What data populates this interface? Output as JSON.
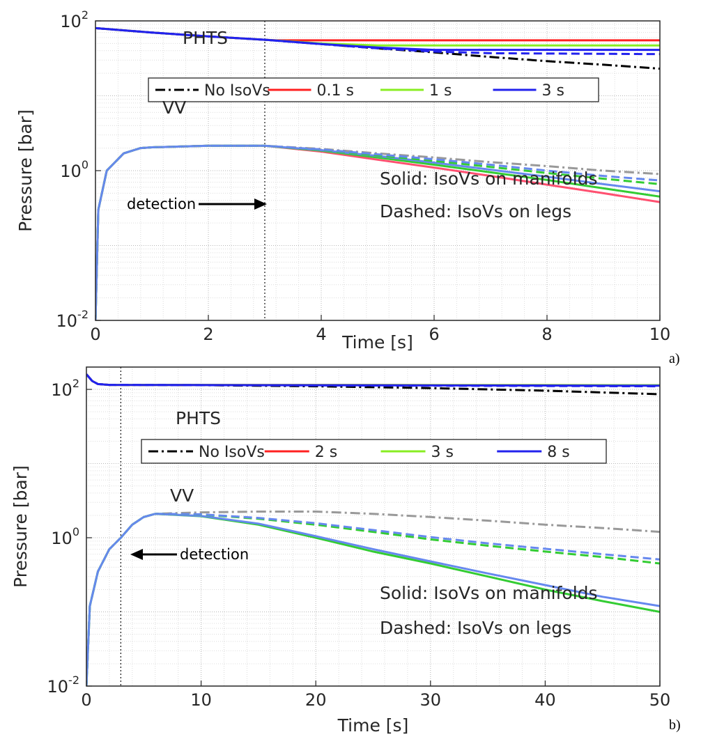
{
  "chart_data": [
    {
      "panel_label": "a)",
      "type": "line",
      "xlabel": "Time [s]",
      "ylabel": "Pressure [bar]",
      "xlim": [
        0,
        10
      ],
      "ylim": [
        0.01,
        100
      ],
      "yscale": "log",
      "grid": "major and minor, dotted",
      "xticks": [
        "0",
        "2",
        "4",
        "6",
        "8",
        "10"
      ],
      "yticks": [
        {
          "value": 0.01,
          "label": "10",
          "exp": "-2"
        },
        {
          "value": 1,
          "label": "10",
          "exp": "0"
        },
        {
          "value": 100,
          "label": "10",
          "exp": "2"
        }
      ],
      "legend": {
        "placement": "upper",
        "entries": [
          {
            "label": "No IsoVs",
            "color": "#000000",
            "style": "dashdot"
          },
          {
            "label": "0.1 s",
            "color": "#ff2020",
            "style": "solid"
          },
          {
            "label": "1 s",
            "color": "#88ee22",
            "style": "solid"
          },
          {
            "label": "3 s",
            "color": "#2222ee",
            "style": "solid"
          }
        ]
      },
      "annotations": {
        "phts": "PHTS",
        "vv": "VV",
        "solid_note": "Solid: IsoVs on manifolds",
        "dashed_note": "Dashed: IsoVs on legs",
        "detection": "detection"
      },
      "detection_time": 3,
      "detection_arrow_direction": "right",
      "series": [
        {
          "group": "PHTS",
          "name": "No IsoVs",
          "color": "#000000",
          "style": "dashdot",
          "x": [
            0,
            1,
            2,
            3,
            4,
            5,
            6,
            7,
            8,
            9,
            10
          ],
          "y": [
            80,
            70,
            62,
            56,
            49,
            43,
            38,
            33,
            29,
            26,
            23
          ]
        },
        {
          "group": "PHTS",
          "name": "0.1 s",
          "color": "#ff2020",
          "style": "solid",
          "x": [
            0,
            1,
            2,
            3,
            3.2,
            10
          ],
          "y": [
            80,
            70,
            62,
            56,
            55,
            55
          ]
        },
        {
          "group": "PHTS",
          "name": "1 s",
          "color": "#88ee22",
          "style": "solid",
          "x": [
            0,
            1,
            2,
            3,
            4,
            5,
            10
          ],
          "y": [
            80,
            70,
            62,
            56,
            50,
            47,
            47
          ]
        },
        {
          "group": "PHTS",
          "name": "3 s",
          "color": "#2222ee",
          "style": "solid",
          "x": [
            0,
            1,
            2,
            3,
            4,
            5,
            6,
            10
          ],
          "y": [
            80,
            70,
            62,
            56,
            49,
            44,
            41,
            41
          ]
        },
        {
          "group": "PHTS",
          "color": "#2222ee",
          "style": "dashed",
          "x": [
            0,
            1,
            2,
            3,
            4,
            5,
            6,
            7,
            10
          ],
          "y": [
            80,
            70,
            62,
            56,
            49,
            43,
            39,
            37,
            36
          ]
        },
        {
          "group": "VV",
          "color": "#999999",
          "style": "dashdot",
          "x": [
            0,
            0.05,
            0.2,
            0.5,
            0.8,
            1,
            2,
            3,
            4,
            5,
            6,
            7,
            8,
            9,
            10
          ],
          "y": [
            0.01,
            0.3,
            1.0,
            1.7,
            2.0,
            2.05,
            2.15,
            2.15,
            1.95,
            1.7,
            1.5,
            1.3,
            1.15,
            1.0,
            0.9
          ]
        },
        {
          "group": "VV",
          "color": "#ff5070",
          "style": "solid",
          "x": [
            0,
            0.05,
            0.2,
            0.5,
            0.8,
            1,
            2,
            3,
            4,
            5,
            6,
            7,
            8,
            9,
            10
          ],
          "y": [
            0.01,
            0.3,
            1.0,
            1.7,
            2.0,
            2.05,
            2.15,
            2.15,
            1.8,
            1.4,
            1.1,
            0.85,
            0.65,
            0.5,
            0.38
          ]
        },
        {
          "group": "VV",
          "color": "#33cc33",
          "style": "solid",
          "x": [
            0,
            0.05,
            0.2,
            0.5,
            0.8,
            1,
            2,
            3,
            4,
            5,
            6,
            7,
            8,
            9,
            10
          ],
          "y": [
            0.01,
            0.3,
            1.0,
            1.7,
            2.0,
            2.05,
            2.15,
            2.15,
            1.85,
            1.5,
            1.2,
            0.95,
            0.75,
            0.58,
            0.45
          ]
        },
        {
          "group": "VV",
          "color": "#6688ee",
          "style": "solid",
          "x": [
            0,
            0.05,
            0.2,
            0.5,
            0.8,
            1,
            2,
            3,
            4,
            5,
            6,
            7,
            8,
            9,
            10
          ],
          "y": [
            0.01,
            0.3,
            1.0,
            1.7,
            2.0,
            2.05,
            2.15,
            2.15,
            1.88,
            1.57,
            1.28,
            1.03,
            0.83,
            0.66,
            0.53
          ]
        },
        {
          "group": "VV",
          "color": "#33cc33",
          "style": "dashed",
          "x": [
            0,
            0.05,
            0.2,
            0.5,
            0.8,
            1,
            2,
            3,
            4,
            5,
            6,
            7,
            8,
            9,
            10
          ],
          "y": [
            0.01,
            0.3,
            1.0,
            1.7,
            2.0,
            2.05,
            2.15,
            2.15,
            1.9,
            1.6,
            1.35,
            1.12,
            0.93,
            0.78,
            0.66
          ]
        },
        {
          "group": "VV",
          "color": "#6688ee",
          "style": "dashed",
          "x": [
            0,
            0.05,
            0.2,
            0.5,
            0.8,
            1,
            2,
            3,
            4,
            5,
            6,
            7,
            8,
            9,
            10
          ],
          "y": [
            0.01,
            0.3,
            1.0,
            1.7,
            2.0,
            2.05,
            2.15,
            2.15,
            1.92,
            1.65,
            1.42,
            1.2,
            1.0,
            0.85,
            0.74
          ]
        }
      ]
    },
    {
      "panel_label": "b)",
      "type": "line",
      "xlabel": "Time [s]",
      "ylabel": "Pressure [bar]",
      "xlim": [
        0,
        50
      ],
      "ylim": [
        0.01,
        200
      ],
      "yscale": "log",
      "grid": "major and minor, dotted",
      "xticks": [
        "0",
        "10",
        "20",
        "30",
        "40",
        "50"
      ],
      "yticks": [
        {
          "value": 0.01,
          "label": "10",
          "exp": "-2"
        },
        {
          "value": 1,
          "label": "10",
          "exp": "0"
        },
        {
          "value": 100,
          "label": "10",
          "exp": "2"
        }
      ],
      "legend": {
        "placement": "upper",
        "entries": [
          {
            "label": "No IsoVs",
            "color": "#000000",
            "style": "dashdot"
          },
          {
            "label": "2 s",
            "color": "#ff2020",
            "style": "solid"
          },
          {
            "label": "3 s",
            "color": "#88ee22",
            "style": "solid"
          },
          {
            "label": "8 s",
            "color": "#2222ee",
            "style": "solid"
          }
        ]
      },
      "annotations": {
        "phts": "PHTS",
        "vv": "VV",
        "solid_note": "Solid: IsoVs on manifolds",
        "dashed_note": "Dashed: IsoVs on legs",
        "detection": "detection"
      },
      "detection_time": 3,
      "detection_arrow_direction": "left",
      "series": [
        {
          "group": "PHTS",
          "name": "No IsoVs",
          "color": "#000000",
          "style": "dashdot",
          "x": [
            0,
            0.5,
            1,
            2,
            10,
            20,
            30,
            40,
            50
          ],
          "y": [
            160,
            130,
            118,
            115,
            114,
            110,
            104,
            96,
            86
          ]
        },
        {
          "group": "PHTS",
          "name": "2 s",
          "color": "#ff2020",
          "style": "solid",
          "x": [
            0,
            0.5,
            1,
            2,
            50
          ],
          "y": [
            160,
            130,
            118,
            115,
            114
          ]
        },
        {
          "group": "PHTS",
          "name": "3 s",
          "color": "#88ee22",
          "style": "solid",
          "x": [
            0,
            0.5,
            1,
            2,
            50
          ],
          "y": [
            160,
            130,
            118,
            115,
            114
          ]
        },
        {
          "group": "PHTS",
          "name": "8 s",
          "color": "#2222ee",
          "style": "solid",
          "x": [
            0,
            0.5,
            1,
            2,
            50
          ],
          "y": [
            160,
            130,
            118,
            115,
            112
          ]
        },
        {
          "group": "PHTS",
          "color": "#2222ee",
          "style": "dashed",
          "x": [
            0,
            0.5,
            1,
            2,
            50
          ],
          "y": [
            160,
            130,
            118,
            115,
            110
          ]
        },
        {
          "group": "VV",
          "color": "#999999",
          "style": "dashdot",
          "x": [
            0,
            0.3,
            1,
            2,
            3,
            4,
            5,
            6,
            10,
            15,
            20,
            25,
            30,
            35,
            40,
            45,
            50
          ],
          "y": [
            0.01,
            0.12,
            0.35,
            0.7,
            1.0,
            1.5,
            1.9,
            2.1,
            2.2,
            2.25,
            2.25,
            2.1,
            1.9,
            1.7,
            1.5,
            1.35,
            1.2
          ]
        },
        {
          "group": "VV",
          "color": "#33cc33",
          "style": "solid",
          "x": [
            0,
            0.3,
            1,
            2,
            3,
            4,
            5,
            6,
            10,
            15,
            20,
            25,
            30,
            35,
            40,
            45,
            50
          ],
          "y": [
            0.01,
            0.12,
            0.35,
            0.7,
            1.0,
            1.5,
            1.9,
            2.1,
            1.95,
            1.5,
            1.0,
            0.65,
            0.45,
            0.3,
            0.2,
            0.14,
            0.1
          ]
        },
        {
          "group": "VV",
          "color": "#6688ee",
          "style": "solid",
          "x": [
            0,
            0.3,
            1,
            2,
            3,
            4,
            5,
            6,
            10,
            15,
            20,
            25,
            30,
            35,
            40,
            45,
            50
          ],
          "y": [
            0.01,
            0.12,
            0.35,
            0.7,
            1.0,
            1.5,
            1.9,
            2.1,
            1.97,
            1.55,
            1.05,
            0.7,
            0.48,
            0.33,
            0.23,
            0.16,
            0.12
          ]
        },
        {
          "group": "VV",
          "color": "#33cc33",
          "style": "dashed",
          "x": [
            0,
            0.3,
            1,
            2,
            3,
            4,
            5,
            6,
            10,
            15,
            20,
            25,
            30,
            35,
            40,
            45,
            50
          ],
          "y": [
            0.01,
            0.12,
            0.35,
            0.7,
            1.0,
            1.5,
            1.9,
            2.1,
            2.05,
            1.8,
            1.5,
            1.2,
            0.95,
            0.78,
            0.65,
            0.55,
            0.45
          ]
        },
        {
          "group": "VV",
          "color": "#6688ee",
          "style": "dashed",
          "x": [
            0,
            0.3,
            1,
            2,
            3,
            4,
            5,
            6,
            10,
            15,
            20,
            25,
            30,
            35,
            40,
            45,
            50
          ],
          "y": [
            0.01,
            0.12,
            0.35,
            0.7,
            1.0,
            1.5,
            1.9,
            2.1,
            2.07,
            1.85,
            1.57,
            1.27,
            1.02,
            0.84,
            0.71,
            0.6,
            0.51
          ]
        }
      ]
    }
  ]
}
